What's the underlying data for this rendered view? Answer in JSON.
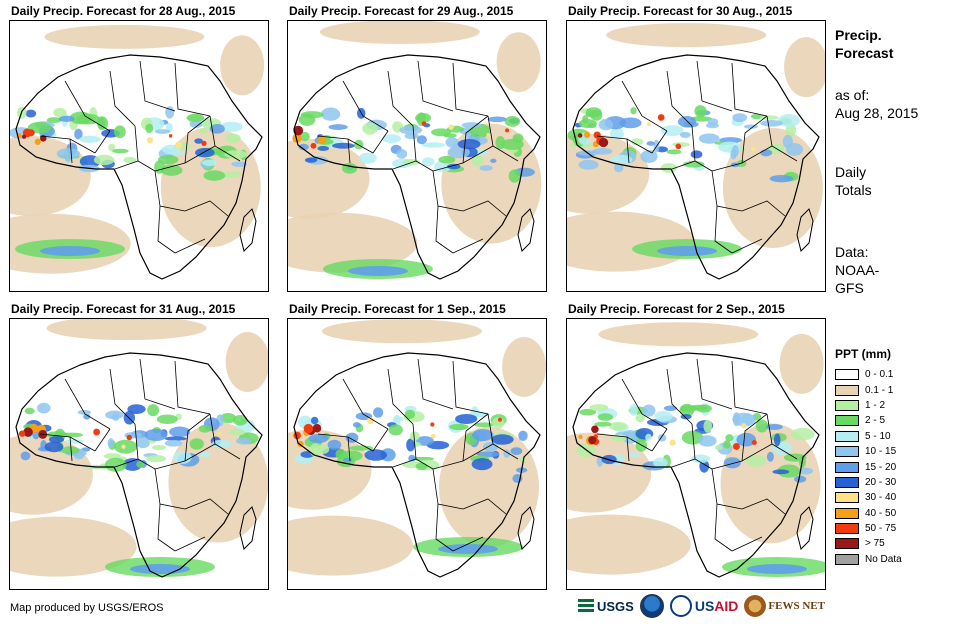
{
  "panels": [
    {
      "title": "Daily Precip. Forecast for 28 Aug., 2015"
    },
    {
      "title": "Daily Precip. Forecast for 29 Aug., 2015"
    },
    {
      "title": "Daily Precip. Forecast for 30 Aug., 2015"
    },
    {
      "title": "Daily Precip. Forecast for 31 Aug., 2015"
    },
    {
      "title": "Daily Precip. Forecast for 1 Sep., 2015"
    },
    {
      "title": "Daily Precip. Forecast for 2 Sep., 2015"
    }
  ],
  "sidebar": {
    "title_line1": "Precip.",
    "title_line2": "Forecast",
    "asof_line1": "as of:",
    "asof_line2": "Aug 28, 2015",
    "totals_line1": "Daily",
    "totals_line2": "Totals",
    "data_line1": "Data:",
    "data_line2": "NOAA-",
    "data_line3": "GFS"
  },
  "legend": {
    "title": "PPT (mm)",
    "items": [
      {
        "label": "0 - 0.1",
        "color": "#ffffff"
      },
      {
        "label": "0.1 - 1",
        "color": "#e9d3b4"
      },
      {
        "label": "1 - 2",
        "color": "#b4f0a2"
      },
      {
        "label": "2 - 5",
        "color": "#68d962"
      },
      {
        "label": "5 - 10",
        "color": "#b4eef2"
      },
      {
        "label": "10 - 15",
        "color": "#8fc6f0"
      },
      {
        "label": "15 - 20",
        "color": "#5f9fe9"
      },
      {
        "label": "20 - 30",
        "color": "#2462d6"
      },
      {
        "label": "30 - 40",
        "color": "#fde28a"
      },
      {
        "label": "40 - 50",
        "color": "#f5a019"
      },
      {
        "label": "50 - 75",
        "color": "#f03d10"
      },
      {
        "label": "> 75",
        "color": "#9a1818"
      },
      {
        "label": "No Data",
        "color": "#a0a0a0"
      }
    ]
  },
  "footer": {
    "credit": "Map produced by USGS/EROS",
    "logo_usgs": "USGS",
    "logo_usaid_a": "US",
    "logo_usaid_b": "AID",
    "logo_fews": "FEWS NET"
  }
}
